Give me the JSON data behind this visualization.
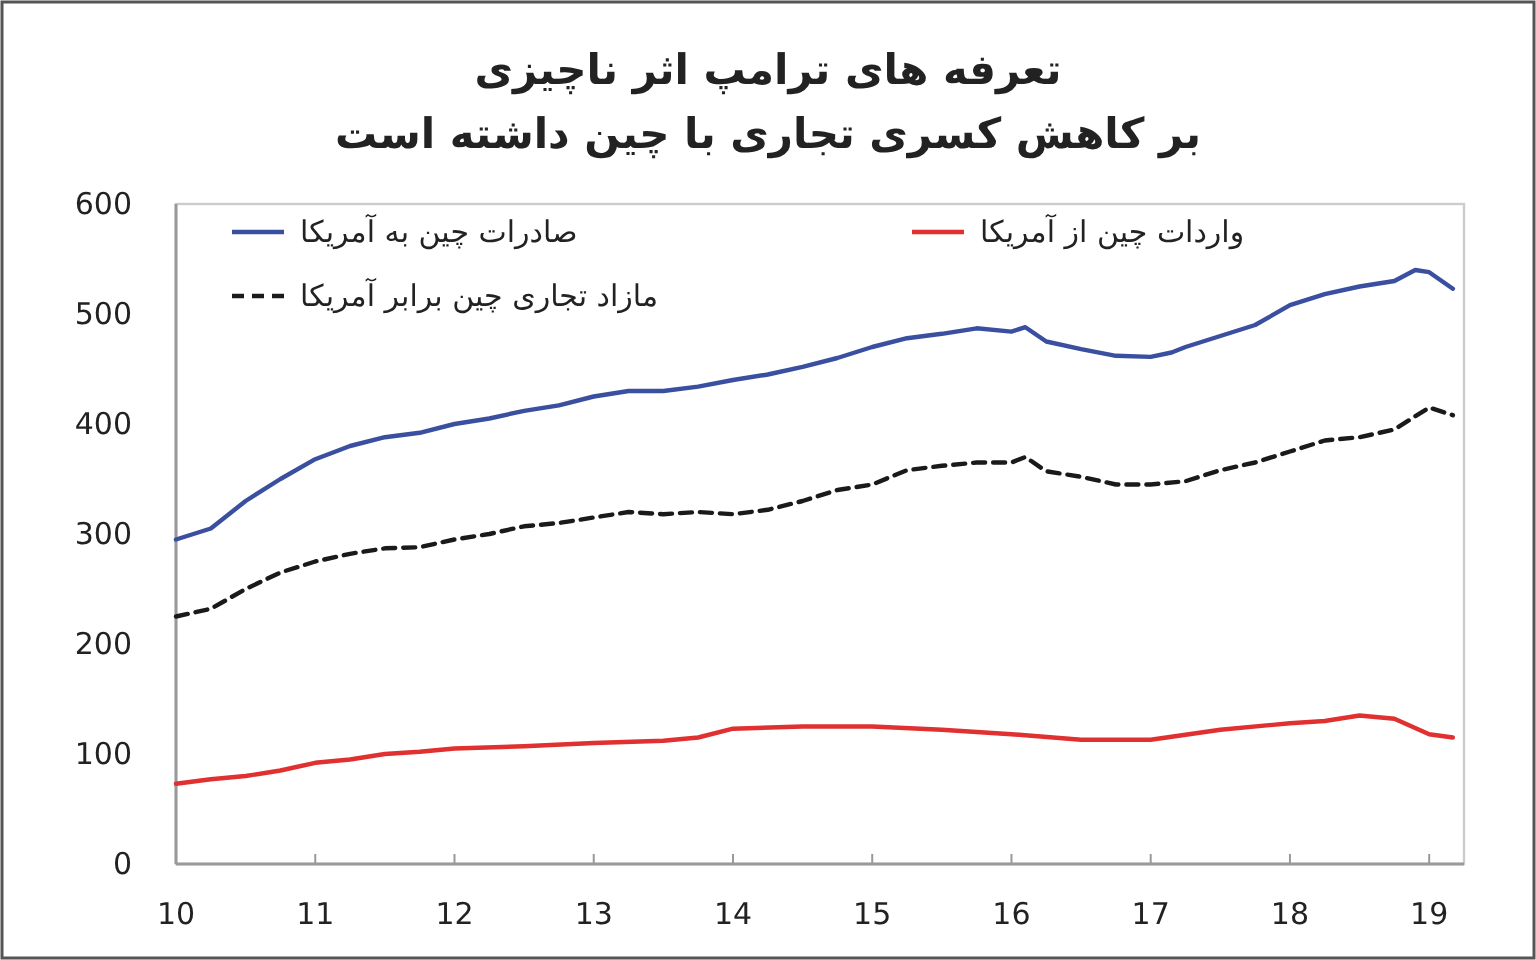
{
  "chart_data": {
    "type": "line",
    "title": "تعرفه های ترامپ اثر ناچیزی",
    "subtitle": "بر کاهش کسری تجاری با چین داشته است",
    "xlim": [
      10,
      19.25
    ],
    "xticks": [
      10,
      11,
      12,
      13,
      14,
      15,
      16,
      17,
      18,
      19
    ],
    "ylim": [
      0,
      600
    ],
    "yticks": [
      0,
      100,
      200,
      300,
      400,
      500,
      600
    ],
    "grid": false,
    "legend": "top left",
    "marker": "none",
    "series": [
      {
        "name": "صادرات چین به آمریکا",
        "color": "#3a4fa0",
        "line_style": "solid",
        "x": [
          10,
          10.25,
          10.5,
          10.75,
          11,
          11.25,
          11.5,
          11.75,
          12,
          12.25,
          12.5,
          12.75,
          13,
          13.25,
          13.5,
          13.75,
          14,
          14.25,
          14.5,
          14.75,
          15,
          15.25,
          15.5,
          15.75,
          16,
          16.1,
          16.25,
          16.5,
          16.75,
          17,
          17.15,
          17.25,
          17.5,
          17.75,
          18,
          18.25,
          18.5,
          18.75,
          18.9,
          19,
          19.17
        ],
        "values": [
          295,
          305,
          330,
          350,
          368,
          380,
          388,
          392,
          400,
          405,
          412,
          417,
          425,
          430,
          430,
          434,
          440,
          445,
          452,
          460,
          470,
          478,
          482,
          487,
          484,
          488,
          475,
          468,
          462,
          461,
          465,
          470,
          480,
          490,
          508,
          518,
          525,
          530,
          540,
          538,
          523
        ]
      },
      {
        "name": "واردات چین از آمریکا",
        "color": "#e03030",
        "line_style": "solid",
        "x": [
          10,
          10.25,
          10.5,
          10.75,
          11,
          11.25,
          11.5,
          11.75,
          12,
          12.5,
          13,
          13.5,
          13.75,
          14,
          14.5,
          15,
          15.5,
          16,
          16.5,
          17,
          17.5,
          18,
          18.25,
          18.5,
          18.75,
          19,
          19.17
        ],
        "values": [
          73,
          77,
          80,
          85,
          92,
          95,
          100,
          102,
          105,
          107,
          110,
          112,
          115,
          123,
          125,
          125,
          122,
          118,
          113,
          113,
          122,
          128,
          130,
          135,
          132,
          118,
          115
        ]
      },
      {
        "name": "مازاد تجاری چین برابر آمریکا",
        "color": "#1a1a1a",
        "line_style": "dashed",
        "x": [
          10,
          10.25,
          10.5,
          10.75,
          11,
          11.25,
          11.5,
          11.75,
          12,
          12.25,
          12.5,
          12.75,
          13,
          13.25,
          13.5,
          13.75,
          14,
          14.25,
          14.5,
          14.75,
          15,
          15.25,
          15.5,
          15.75,
          16,
          16.1,
          16.25,
          16.5,
          16.75,
          17,
          17.25,
          17.5,
          17.75,
          18,
          18.25,
          18.5,
          18.75,
          19,
          19.17
        ],
        "values": [
          225,
          232,
          250,
          265,
          275,
          282,
          287,
          288,
          295,
          300,
          307,
          310,
          315,
          320,
          318,
          320,
          318,
          322,
          330,
          340,
          345,
          358,
          362,
          365,
          365,
          370,
          357,
          352,
          345,
          345,
          348,
          358,
          365,
          375,
          385,
          388,
          395,
          415,
          408
        ]
      }
    ]
  }
}
